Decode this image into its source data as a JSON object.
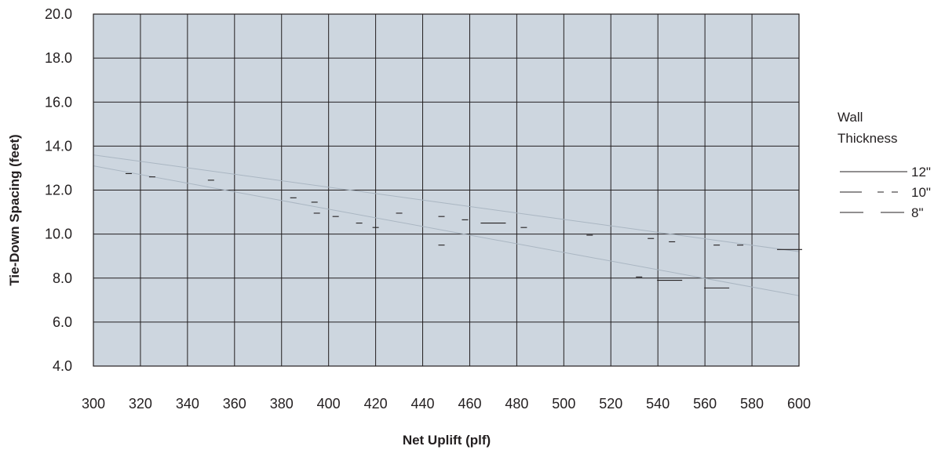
{
  "chart_data": {
    "type": "line",
    "title": "",
    "xlabel": "Net Uplift (plf)",
    "ylabel": "Tie-Down Spacing (feet)",
    "xlim": [
      300,
      600
    ],
    "ylim": [
      4.0,
      20.0
    ],
    "x_ticks": [
      "300",
      "320",
      "340",
      "360",
      "380",
      "400",
      "420",
      "440",
      "460",
      "480",
      "500",
      "520",
      "540",
      "560",
      "580",
      "600"
    ],
    "y_ticks": [
      "4.0",
      "6.0",
      "8.0",
      "10.0",
      "12.0",
      "14.0",
      "16.0",
      "18.0",
      "20.0"
    ],
    "grid": true,
    "legend": {
      "title_lines": [
        "Wall",
        "Thickness"
      ],
      "placement": "right"
    },
    "series": [
      {
        "name": "12\"",
        "style": "solid",
        "points": [
          [
            315,
            12.75
          ],
          [
            325,
            12.6
          ],
          [
            350,
            12.45
          ],
          [
            385,
            11.65
          ],
          [
            394,
            11.45
          ],
          [
            403,
            10.8
          ],
          [
            413,
            10.5
          ],
          [
            420,
            10.3
          ],
          [
            430,
            10.95
          ],
          [
            448,
            10.8
          ],
          [
            458,
            10.65
          ],
          [
            470,
            10.5
          ],
          [
            483,
            10.3
          ],
          [
            511,
            9.95
          ],
          [
            537,
            9.8
          ],
          [
            546,
            9.65
          ],
          [
            565,
            9.5
          ],
          [
            575,
            9.5
          ],
          [
            596,
            9.3
          ]
        ]
      },
      {
        "name": "10\"",
        "style": "dashed",
        "points": [
          [
            395,
            10.95
          ],
          [
            448,
            9.5
          ],
          [
            532,
            8.05
          ]
        ]
      },
      {
        "name": "8\"",
        "style": "long-dash",
        "points": [
          [
            545,
            7.9
          ],
          [
            565,
            7.55
          ]
        ]
      }
    ],
    "faint_trend_lines": [
      {
        "points": [
          [
            300,
            13.6
          ],
          [
            600,
            9.2
          ]
        ]
      },
      {
        "points": [
          [
            300,
            13.1
          ],
          [
            600,
            7.2
          ]
        ]
      }
    ],
    "colors": {
      "plot_bg": "#cdd6df",
      "grid": "#231f20",
      "line": "#231f20",
      "trend": "#aab6c2"
    }
  }
}
